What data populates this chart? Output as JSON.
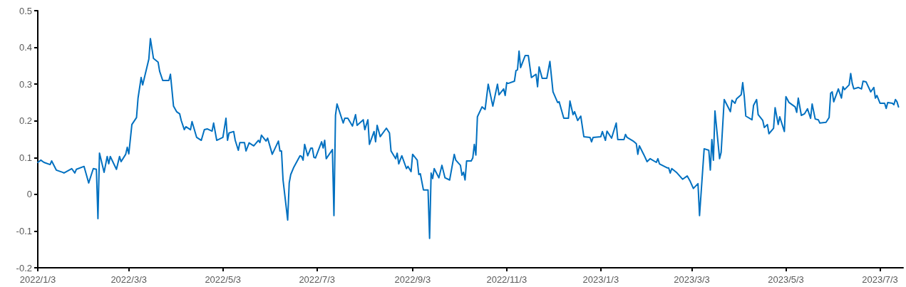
{
  "chart_data": {
    "type": "line",
    "xlim": [
      "2022-01-03",
      "2023-07-18"
    ],
    "xticks": [
      {
        "value": "2022-01-03",
        "label": "2022/1/3"
      },
      {
        "value": "2022-03-03",
        "label": "2022/3/3"
      },
      {
        "value": "2022-05-03",
        "label": "2022/5/3"
      },
      {
        "value": "2022-07-03",
        "label": "2022/7/3"
      },
      {
        "value": "2022-09-03",
        "label": "2022/9/3"
      },
      {
        "value": "2022-11-03",
        "label": "2022/11/3"
      },
      {
        "value": "2023-01-03",
        "label": "2023/1/3"
      },
      {
        "value": "2023-03-03",
        "label": "2023/3/3"
      },
      {
        "value": "2023-05-03",
        "label": "2023/5/3"
      },
      {
        "value": "2023-07-03",
        "label": "2023/7/3"
      }
    ],
    "ylim": [
      -0.2,
      0.5
    ],
    "yticks": [
      -0.2,
      -0.1,
      0,
      0.1,
      0.2,
      0.3,
      0.4,
      0.5
    ],
    "grid": false,
    "marker": "none",
    "line_style": "solid",
    "x": [
      "2022-01-03",
      "2022-01-05",
      "2022-01-07",
      "2022-01-11",
      "2022-01-12",
      "2022-01-15",
      "2022-01-19",
      "2022-01-20",
      "2022-01-25",
      "2022-01-27",
      "2022-01-28",
      "2022-02-02",
      "2022-02-05",
      "2022-02-08",
      "2022-02-10",
      "2022-02-11",
      "2022-02-12",
      "2022-02-15",
      "2022-02-17",
      "2022-02-18",
      "2022-02-19",
      "2022-02-23",
      "2022-02-25",
      "2022-02-26",
      "2022-03-01",
      "2022-03-02",
      "2022-03-03",
      "2022-03-05",
      "2022-03-08",
      "2022-03-09",
      "2022-03-11",
      "2022-03-12",
      "2022-03-16",
      "2022-03-17",
      "2022-03-19",
      "2022-03-22",
      "2022-03-23",
      "2022-03-25",
      "2022-03-29",
      "2022-03-30",
      "2022-04-01",
      "2022-04-03",
      "2022-04-05",
      "2022-04-06",
      "2022-04-08",
      "2022-04-09",
      "2022-04-12",
      "2022-04-13",
      "2022-04-16",
      "2022-04-19",
      "2022-04-21",
      "2022-04-23",
      "2022-04-26",
      "2022-04-27",
      "2022-04-29",
      "2022-05-03",
      "2022-05-05",
      "2022-05-06",
      "2022-05-07",
      "2022-05-10",
      "2022-05-11",
      "2022-05-13",
      "2022-05-14",
      "2022-05-17",
      "2022-05-18",
      "2022-05-20",
      "2022-05-23",
      "2022-05-26",
      "2022-05-27",
      "2022-05-28",
      "2022-05-31",
      "2022-06-01",
      "2022-06-04",
      "2022-06-08",
      "2022-06-09",
      "2022-06-10",
      "2022-06-11",
      "2022-06-14",
      "2022-06-15",
      "2022-06-16",
      "2022-06-18",
      "2022-06-22",
      "2022-06-23",
      "2022-06-24",
      "2022-06-25",
      "2022-06-27",
      "2022-06-29",
      "2022-06-30",
      "2022-07-01",
      "2022-07-02",
      "2022-07-06",
      "2022-07-07",
      "2022-07-08",
      "2022-07-09",
      "2022-07-13",
      "2022-07-14",
      "2022-07-15",
      "2022-07-16",
      "2022-07-20",
      "2022-07-21",
      "2022-07-23",
      "2022-07-26",
      "2022-07-28",
      "2022-07-29",
      "2022-08-02",
      "2022-08-03",
      "2022-08-05",
      "2022-08-06",
      "2022-08-09",
      "2022-08-10",
      "2022-08-11",
      "2022-08-13",
      "2022-08-17",
      "2022-08-19",
      "2022-08-20",
      "2022-08-23",
      "2022-08-24",
      "2022-08-25",
      "2022-08-27",
      "2022-08-30",
      "2022-08-31",
      "2022-09-02",
      "2022-09-03",
      "2022-09-06",
      "2022-09-07",
      "2022-09-08",
      "2022-09-10",
      "2022-09-13",
      "2022-09-14",
      "2022-09-15",
      "2022-09-16",
      "2022-09-17",
      "2022-09-20",
      "2022-09-22",
      "2022-09-24",
      "2022-09-27",
      "2022-09-30",
      "2022-10-01",
      "2022-10-04",
      "2022-10-05",
      "2022-10-06",
      "2022-10-07",
      "2022-10-08",
      "2022-10-11",
      "2022-10-12",
      "2022-10-13",
      "2022-10-14",
      "2022-10-15",
      "2022-10-18",
      "2022-10-20",
      "2022-10-22",
      "2022-10-25",
      "2022-10-28",
      "2022-10-29",
      "2022-11-01",
      "2022-11-02",
      "2022-11-03",
      "2022-11-04",
      "2022-11-08",
      "2022-11-09",
      "2022-11-10",
      "2022-11-11",
      "2022-11-12",
      "2022-11-15",
      "2022-11-17",
      "2022-11-19",
      "2022-11-22",
      "2022-11-23",
      "2022-11-24",
      "2022-11-26",
      "2022-11-29",
      "2022-12-01",
      "2022-12-03",
      "2022-12-06",
      "2022-12-07",
      "2022-12-10",
      "2022-12-13",
      "2022-12-14",
      "2022-12-16",
      "2022-12-17",
      "2022-12-19",
      "2022-12-21",
      "2022-12-23",
      "2022-12-27",
      "2022-12-28",
      "2022-12-29",
      "2023-01-03",
      "2023-01-04",
      "2023-01-06",
      "2023-01-07",
      "2023-01-10",
      "2023-01-11",
      "2023-01-13",
      "2023-01-14",
      "2023-01-18",
      "2023-01-19",
      "2023-01-20",
      "2023-01-24",
      "2023-01-26",
      "2023-01-27",
      "2023-01-28",
      "2023-01-31",
      "2023-02-02",
      "2023-02-04",
      "2023-02-08",
      "2023-02-09",
      "2023-02-10",
      "2023-02-15",
      "2023-02-16",
      "2023-02-17",
      "2023-02-18",
      "2023-02-21",
      "2023-02-25",
      "2023-02-28",
      "2023-03-02",
      "2023-03-04",
      "2023-03-07",
      "2023-03-08",
      "2023-03-11",
      "2023-03-14",
      "2023-03-15",
      "2023-03-16",
      "2023-03-17",
      "2023-03-18",
      "2023-03-21",
      "2023-03-22",
      "2023-03-24",
      "2023-03-28",
      "2023-03-29",
      "2023-03-31",
      "2023-04-01",
      "2023-04-04",
      "2023-04-05",
      "2023-04-06",
      "2023-04-07",
      "2023-04-11",
      "2023-04-12",
      "2023-04-14",
      "2023-04-15",
      "2023-04-18",
      "2023-04-19",
      "2023-04-21",
      "2023-04-22",
      "2023-04-25",
      "2023-04-26",
      "2023-04-28",
      "2023-04-29",
      "2023-05-02",
      "2023-05-03",
      "2023-05-04",
      "2023-05-05",
      "2023-05-09",
      "2023-05-10",
      "2023-05-11",
      "2023-05-13",
      "2023-05-15",
      "2023-05-17",
      "2023-05-19",
      "2023-05-20",
      "2023-05-22",
      "2023-05-24",
      "2023-05-25",
      "2023-05-29",
      "2023-05-31",
      "2023-06-01",
      "2023-06-02",
      "2023-06-03",
      "2023-06-06",
      "2023-06-08",
      "2023-06-09",
      "2023-06-10",
      "2023-06-13",
      "2023-06-14",
      "2023-06-15",
      "2023-06-16",
      "2023-06-19",
      "2023-06-21",
      "2023-06-22",
      "2023-06-24",
      "2023-06-27",
      "2023-06-29",
      "2023-06-30",
      "2023-07-01",
      "2023-07-03",
      "2023-07-06",
      "2023-07-07",
      "2023-07-08",
      "2023-07-11",
      "2023-07-12",
      "2023-07-13",
      "2023-07-14",
      "2023-07-15"
    ],
    "series": [
      {
        "color": "#0070c0",
        "values": [
          0.087,
          0.093,
          0.087,
          0.081,
          0.091,
          0.066,
          0.06,
          0.058,
          0.07,
          0.058,
          0.068,
          0.076,
          0.031,
          0.07,
          0.068,
          -0.066,
          0.112,
          0.06,
          0.103,
          0.083,
          0.103,
          0.068,
          0.103,
          0.089,
          0.109,
          0.128,
          0.11,
          0.19,
          0.209,
          0.262,
          0.318,
          0.298,
          0.368,
          0.424,
          0.37,
          0.36,
          0.335,
          0.31,
          0.31,
          0.327,
          0.24,
          0.225,
          0.219,
          0.201,
          0.176,
          0.184,
          0.176,
          0.198,
          0.155,
          0.147,
          0.176,
          0.178,
          0.172,
          0.194,
          0.147,
          0.155,
          0.207,
          0.147,
          0.167,
          0.171,
          0.147,
          0.12,
          0.141,
          0.141,
          0.118,
          0.14,
          0.132,
          0.147,
          0.141,
          0.161,
          0.145,
          0.153,
          0.109,
          0.145,
          0.118,
          0.118,
          0.039,
          -0.07,
          0.031,
          0.054,
          0.074,
          0.105,
          0.103,
          0.093,
          0.136,
          0.105,
          0.126,
          0.126,
          0.101,
          0.099,
          0.143,
          0.126,
          0.147,
          0.097,
          0.122,
          -0.058,
          0.215,
          0.246,
          0.194,
          0.207,
          0.207,
          0.186,
          0.217,
          0.188,
          0.203,
          0.176,
          0.203,
          0.136,
          0.171,
          0.143,
          0.188,
          0.157,
          0.18,
          0.167,
          0.118,
          0.097,
          0.112,
          0.083,
          0.105,
          0.07,
          0.076,
          0.062,
          0.109,
          0.093,
          0.054,
          0.056,
          0.012,
          0.012,
          -0.12,
          0.058,
          0.043,
          0.07,
          0.045,
          0.079,
          0.045,
          0.039,
          0.109,
          0.093,
          0.079,
          0.052,
          0.06,
          0.039,
          0.091,
          0.091,
          0.099,
          0.136,
          0.107,
          0.211,
          0.238,
          0.231,
          0.3,
          0.24,
          0.3,
          0.271,
          0.287,
          0.269,
          0.304,
          0.302,
          0.308,
          0.337,
          0.339,
          0.39,
          0.345,
          0.378,
          0.378,
          0.318,
          0.327,
          0.293,
          0.347,
          0.316,
          0.316,
          0.362,
          0.279,
          0.25,
          0.252,
          0.207,
          0.207,
          0.254,
          0.217,
          0.225,
          0.201,
          0.213,
          0.157,
          0.155,
          0.143,
          0.155,
          0.157,
          0.171,
          0.147,
          0.172,
          0.153,
          0.167,
          0.194,
          0.149,
          0.149,
          0.163,
          0.155,
          0.145,
          0.138,
          0.109,
          0.132,
          0.107,
          0.089,
          0.097,
          0.087,
          0.097,
          0.083,
          0.072,
          0.072,
          0.058,
          0.07,
          0.06,
          0.041,
          0.05,
          0.035,
          0.016,
          0.029,
          -0.058,
          0.124,
          0.12,
          0.066,
          0.149,
          0.093,
          0.227,
          0.097,
          0.114,
          0.258,
          0.225,
          0.256,
          0.248,
          0.26,
          0.271,
          0.304,
          0.267,
          0.213,
          0.203,
          0.242,
          0.258,
          0.217,
          0.201,
          0.182,
          0.19,
          0.165,
          0.18,
          0.236,
          0.19,
          0.211,
          0.171,
          0.266,
          0.258,
          0.25,
          0.238,
          0.223,
          0.262,
          0.215,
          0.219,
          0.233,
          0.207,
          0.246,
          0.205,
          0.203,
          0.194,
          0.196,
          0.209,
          0.275,
          0.279,
          0.252,
          0.287,
          0.262,
          0.293,
          0.285,
          0.298,
          0.329,
          0.302,
          0.287,
          0.291,
          0.287,
          0.308,
          0.306,
          0.279,
          0.291,
          0.262,
          0.269,
          0.248,
          0.248,
          0.234,
          0.25,
          0.248,
          0.244,
          0.258,
          0.252,
          0.238
        ]
      }
    ]
  }
}
